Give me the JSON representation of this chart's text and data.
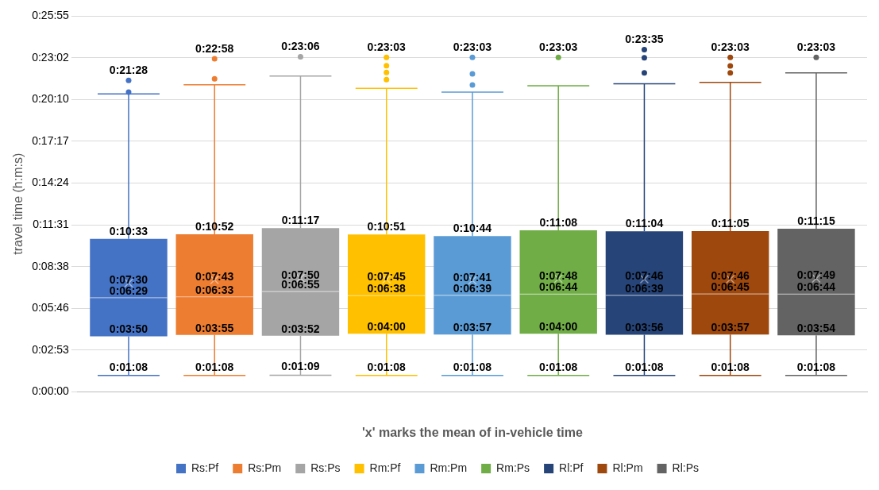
{
  "chart_data": {
    "type": "box",
    "xlabel": "'x' marks the mean of in-vehicle time",
    "ylabel": "travel time (h:m:s)",
    "categories": [
      null
    ],
    "ylim": [
      0,
      1555
    ],
    "yticks": [
      {
        "value": 0,
        "label": "0:00:00"
      },
      {
        "value": 173,
        "label": "0:02:53"
      },
      {
        "value": 346,
        "label": "0:05:46"
      },
      {
        "value": 518,
        "label": "0:08:38"
      },
      {
        "value": 691,
        "label": "0:11:31"
      },
      {
        "value": 864,
        "label": "0:14:24"
      },
      {
        "value": 1037,
        "label": "0:17:17"
      },
      {
        "value": 1210,
        "label": "0:20:10"
      },
      {
        "value": 1382,
        "label": "0:23:02"
      },
      {
        "value": 1555,
        "label": "0:25:55"
      }
    ],
    "grid": "y",
    "legend": "bottom",
    "series": [
      {
        "name": "Rs:Pf",
        "color": "#4472c4",
        "boxes": [
          {
            "low": 68,
            "q1": 230,
            "median": 389,
            "q3": 633,
            "high": 1232,
            "mean": 450,
            "outliers": [
              1240,
              1288
            ]
          }
        ]
      },
      {
        "name": "Rs:Pm",
        "color": "#ed7d31",
        "boxes": [
          {
            "low": 68,
            "q1": 235,
            "median": 393,
            "q3": 652,
            "high": 1270,
            "mean": 463,
            "outliers": [
              1295,
              1378
            ]
          }
        ]
      },
      {
        "name": "Rs:Ps",
        "color": "#a5a5a5",
        "boxes": [
          {
            "low": 69,
            "q1": 232,
            "median": 415,
            "q3": 677,
            "high": 1306,
            "mean": 470,
            "outliers": [
              1386
            ]
          }
        ]
      },
      {
        "name": "Rm:Pf",
        "color": "#ffc000",
        "boxes": [
          {
            "low": 68,
            "q1": 240,
            "median": 398,
            "q3": 651,
            "high": 1255,
            "mean": 465,
            "outliers": [
              1291,
              1321,
              1349,
              1383
            ]
          }
        ]
      },
      {
        "name": "Rm:Pm",
        "color": "#5b9bd5",
        "boxes": [
          {
            "low": 68,
            "q1": 237,
            "median": 399,
            "q3": 644,
            "high": 1240,
            "mean": 461,
            "outliers": [
              1269,
              1315,
              1383
            ]
          }
        ]
      },
      {
        "name": "Rm:Ps",
        "color": "#70ad47",
        "boxes": [
          {
            "low": 68,
            "q1": 240,
            "median": 404,
            "q3": 668,
            "high": 1266,
            "mean": 468,
            "outliers": [
              1383
            ]
          }
        ]
      },
      {
        "name": "Rl:Pf",
        "color": "#264478",
        "boxes": [
          {
            "low": 68,
            "q1": 236,
            "median": 399,
            "q3": 664,
            "high": 1274,
            "mean": 466,
            "outliers": [
              1319,
              1382,
              1415
            ]
          }
        ]
      },
      {
        "name": "Rl:Pm",
        "color": "#9e480e",
        "boxes": [
          {
            "low": 68,
            "q1": 237,
            "median": 405,
            "q3": 665,
            "high": 1280,
            "mean": 466,
            "outliers": [
              1319,
              1348,
              1383
            ]
          }
        ]
      },
      {
        "name": "Rl:Ps",
        "color": "#636363",
        "boxes": [
          {
            "low": 68,
            "q1": 234,
            "median": 404,
            "q3": 675,
            "high": 1319,
            "mean": 469,
            "outliers": [
              1383
            ]
          }
        ]
      }
    ],
    "annotations": [
      "0:21:28",
      {
        "text": "0:10:33",
        "y": 633
      },
      "0:07:30",
      {
        "text": "0:06:29",
        "y": 389
      },
      {
        "text": "0:03:50",
        "y": 230
      },
      {
        "text": "0:01:08",
        "y": 68
      },
      "0:22:58",
      {
        "text": "0:10:52",
        "y": 652
      },
      "0:07:43",
      {
        "text": "0:06:33",
        "y": 393
      },
      {
        "text": "0:03:55",
        "y": 235
      },
      {
        "text": "0:01:08",
        "y": 68
      },
      "0:23:06",
      {
        "text": "0:11:17",
        "y": 677
      },
      "0:07:50",
      {
        "text": "0:06:55",
        "y": 415
      },
      {
        "text": "0:03:52",
        "y": 232
      },
      {
        "text": "0:01:09",
        "y": 69
      },
      "0:23:03",
      {
        "text": "0:10:51",
        "y": 651
      },
      "0:07:45",
      {
        "text": "0:06:38",
        "y": 398
      },
      {
        "text": "0:04:00",
        "y": 240
      },
      {
        "text": "0:01:08",
        "y": 68
      },
      "0:23:03",
      {
        "text": "0:10:44",
        "y": 644
      },
      "0:07:41",
      {
        "text": "0:06:39",
        "y": 399
      },
      {
        "text": "0:03:57",
        "y": 237
      },
      {
        "text": "0:01:08",
        "y": 68
      },
      "0:23:03",
      {
        "text": "0:11:08",
        "y": 668
      },
      "0:07:48",
      {
        "text": "0:06:44",
        "y": 404
      },
      {
        "text": "0:04:00",
        "y": 240
      },
      {
        "text": "0:01:08",
        "y": 68
      },
      "0:23:35",
      {
        "text": "0:11:04",
        "y": 664
      },
      "0:07:46",
      {
        "text": "0:06:39",
        "y": 399
      },
      {
        "text": "0:03:56",
        "y": 236
      },
      {
        "text": "0:01:08",
        "y": 68
      },
      "0:23:03",
      {
        "text": "0:11:05",
        "y": 665
      },
      "0:07:46",
      {
        "text": "0:06:45",
        "y": 405
      },
      {
        "text": "0:03:57",
        "y": 237
      },
      {
        "text": "0:01:08",
        "y": 68
      },
      "0:23:03",
      {
        "text": "0:11:15",
        "y": 675
      },
      "0:07:49",
      {
        "text": "0:06:44",
        "y": 404
      },
      {
        "text": "0:03:54",
        "y": 234
      },
      {
        "text": "0:01:08",
        "y": 68
      }
    ]
  }
}
